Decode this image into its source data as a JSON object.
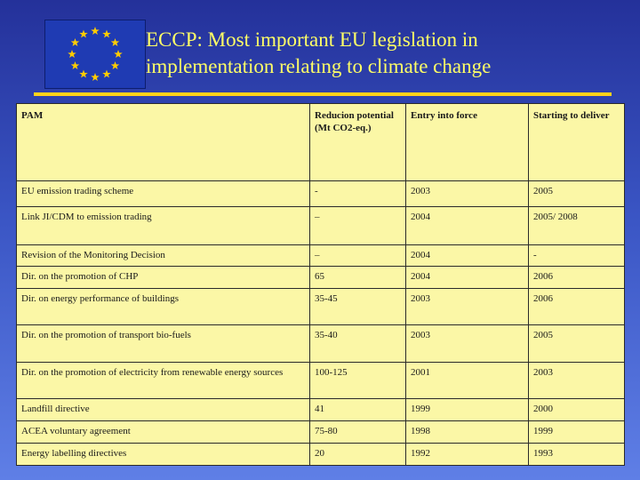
{
  "header": {
    "flag_icon": "eu-flag-icon",
    "title_line1": "ECCP: Most important EU legislation in",
    "title_line2": "implementation relating to climate change"
  },
  "colors": {
    "background": "#3a55c4",
    "title": "#ffff66",
    "rule": "#ffd21a",
    "table_bg": "#fbf7a6",
    "flag_blue": "#1f3bb3",
    "flag_star": "#ffcc00"
  },
  "table": {
    "headers": [
      "PAM",
      "Reducion potential (Mt CO2-eq.)",
      "Entry into force",
      "Starting to deliver"
    ],
    "rows": [
      [
        "EU emission trading scheme",
        "-",
        "2003",
        "2005"
      ],
      [
        "Link JI/CDM to emission trading",
        "–",
        "2004",
        "2005/ 2008"
      ],
      [
        "Revision of the Monitoring Decision",
        "–",
        "2004",
        "-"
      ],
      [
        "Dir. on the promotion of CHP",
        "65",
        "2004",
        "2006"
      ],
      [
        "Dir. on energy performance of buildings",
        "35-45",
        "2003",
        "2006"
      ],
      [
        "Dir. on the promotion of transport bio-fuels",
        "35-40",
        "2003",
        "2005"
      ],
      [
        "Dir. on the promotion of electricity from renewable energy sources",
        "100-125",
        "2001",
        "2003"
      ],
      [
        "Landfill directive",
        "41",
        "1999",
        "2000"
      ],
      [
        "ACEA voluntary agreement",
        "75-80",
        "1998",
        "1999"
      ],
      [
        "Energy labelling directives",
        "20",
        "1992",
        "1993"
      ]
    ]
  }
}
